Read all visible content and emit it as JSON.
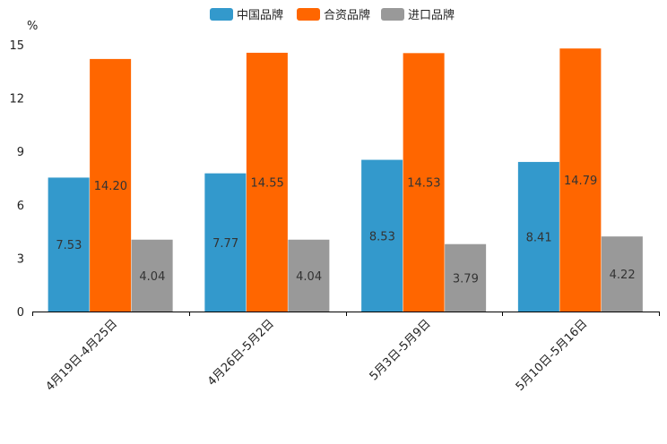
{
  "chart_data": {
    "type": "bar",
    "title": "",
    "xlabel": "",
    "ylabel": "%",
    "ylim": [
      0,
      15
    ],
    "yticks": [
      0,
      3,
      6,
      9,
      12,
      15
    ],
    "grid": false,
    "legend_position": "top-center",
    "categories": [
      "4月19日-4月25日",
      "4月26日-5月2日",
      "5月3日-5月9日",
      "5月10日-5月16日"
    ],
    "series": [
      {
        "name": "中国品牌",
        "color": "#3399cc",
        "values": [
          7.53,
          7.77,
          8.53,
          8.41
        ]
      },
      {
        "name": "合资品牌",
        "color": "#ff6600",
        "values": [
          14.2,
          14.55,
          14.53,
          14.79
        ]
      },
      {
        "name": "进口品牌",
        "color": "#999999",
        "values": [
          4.04,
          4.04,
          3.79,
          4.22
        ]
      }
    ]
  }
}
